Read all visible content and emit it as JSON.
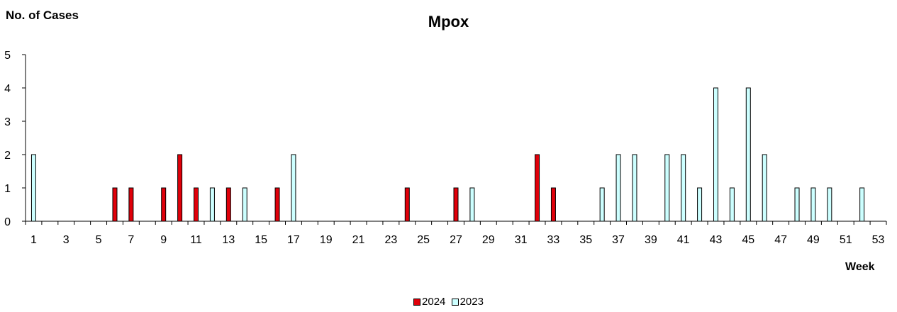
{
  "chart_data": {
    "type": "bar",
    "title": "Mpox",
    "ylabel": "No. of Cases",
    "xlabel": "Week",
    "ylim": [
      0,
      5
    ],
    "yticks": [
      0,
      1,
      2,
      3,
      4,
      5
    ],
    "xlim": [
      1,
      53
    ],
    "xticks": [
      1,
      3,
      5,
      7,
      9,
      11,
      13,
      15,
      17,
      19,
      21,
      23,
      25,
      27,
      29,
      31,
      33,
      35,
      37,
      39,
      41,
      43,
      45,
      47,
      49,
      51,
      53
    ],
    "grid": false,
    "legend_position": "bottom",
    "series": [
      {
        "name": "2024",
        "color": "#e0000a",
        "points": [
          [
            6,
            1
          ],
          [
            7,
            1
          ],
          [
            9,
            1
          ],
          [
            10,
            2
          ],
          [
            11,
            1
          ],
          [
            13,
            1
          ],
          [
            16,
            1
          ],
          [
            24,
            1
          ],
          [
            27,
            1
          ],
          [
            32,
            2
          ],
          [
            33,
            1
          ]
        ]
      },
      {
        "name": "2023",
        "color": "#ccffff",
        "points": [
          [
            1,
            2
          ],
          [
            12,
            1
          ],
          [
            14,
            1
          ],
          [
            17,
            2
          ],
          [
            28,
            1
          ],
          [
            36,
            1
          ],
          [
            37,
            2
          ],
          [
            38,
            2
          ],
          [
            40,
            2
          ],
          [
            41,
            2
          ],
          [
            42,
            1
          ],
          [
            43,
            4
          ],
          [
            44,
            1
          ],
          [
            45,
            4
          ],
          [
            46,
            2
          ],
          [
            48,
            1
          ],
          [
            49,
            1
          ],
          [
            50,
            1
          ],
          [
            52,
            1
          ]
        ]
      }
    ]
  }
}
